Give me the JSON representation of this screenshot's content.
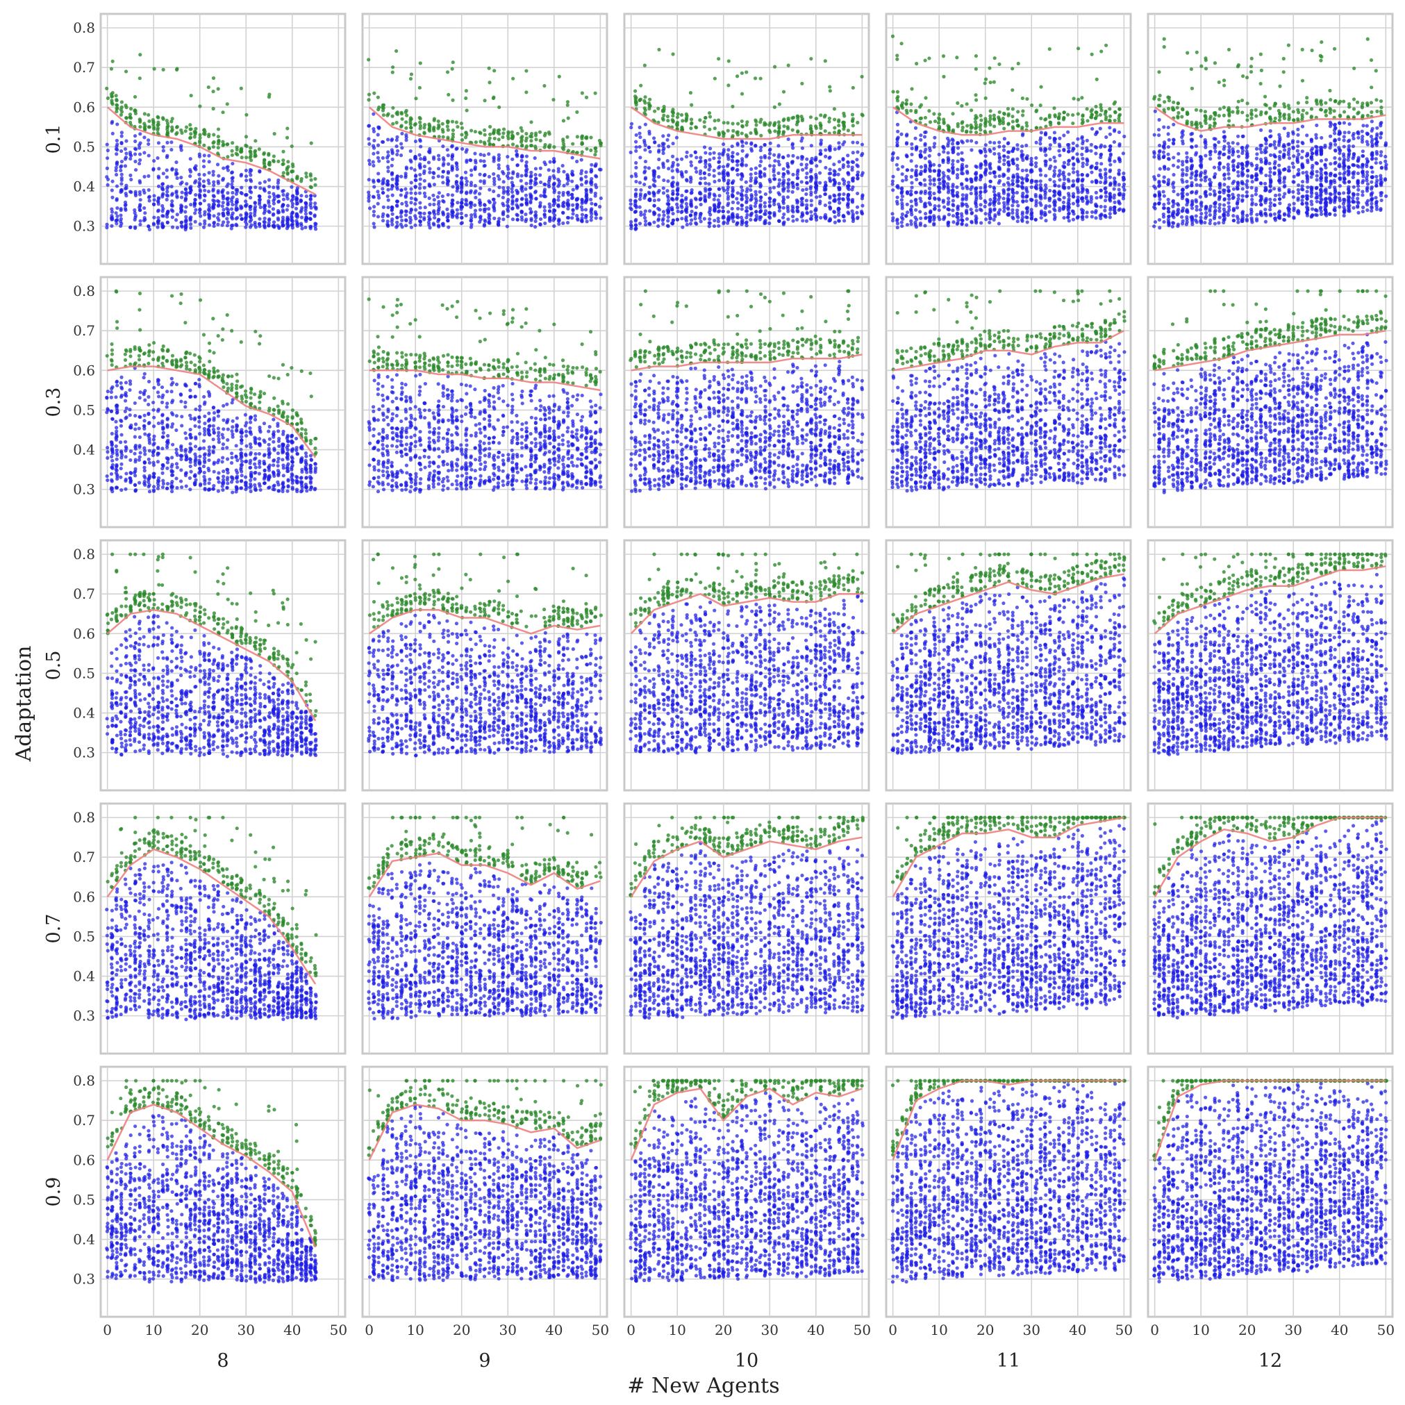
{
  "chart_data": {
    "type": "scatter",
    "layout": "small-multiples grid, 5 rows x 5 columns",
    "xlabel": "# New Agents",
    "ylabel": "Adaptation",
    "column_labels": [
      "8",
      "9",
      "10",
      "11",
      "12"
    ],
    "row_labels": [
      "0.1",
      "0.3",
      "0.5",
      "0.7",
      "0.9"
    ],
    "xlim": [
      -1,
      51
    ],
    "ylim": [
      0.21,
      0.83
    ],
    "xticks": [
      0,
      10,
      20,
      30,
      40,
      50
    ],
    "yticks": [
      0.3,
      0.4,
      0.5,
      0.6,
      0.7,
      0.8
    ],
    "grid": true,
    "legend": "none",
    "colors": {
      "population": "#1f1fe6",
      "frontier": "#2e8b2e",
      "trend": "#f08080"
    },
    "series_description": "Each panel shows a dense cloud of blue points (candidate adaptation values per number of new agents), green points on and above the upper edge, and a thin red line tracing the upper frontier.",
    "frontier": [
      [
        {
          "x": [
            0,
            5,
            10,
            15,
            20,
            25,
            30,
            35,
            40,
            45
          ],
          "y": [
            0.6,
            0.55,
            0.53,
            0.52,
            0.5,
            0.47,
            0.46,
            0.44,
            0.41,
            0.38
          ]
        },
        {
          "x": [
            0,
            5,
            10,
            15,
            20,
            25,
            30,
            35,
            40,
            45,
            50
          ],
          "y": [
            0.6,
            0.55,
            0.53,
            0.52,
            0.51,
            0.5,
            0.5,
            0.49,
            0.49,
            0.48,
            0.47
          ]
        },
        {
          "x": [
            0,
            5,
            10,
            15,
            20,
            25,
            30,
            35,
            40,
            45,
            50
          ],
          "y": [
            0.6,
            0.56,
            0.54,
            0.53,
            0.52,
            0.52,
            0.52,
            0.53,
            0.53,
            0.53,
            0.53
          ]
        },
        {
          "x": [
            0,
            5,
            10,
            15,
            20,
            25,
            30,
            35,
            40,
            45,
            50
          ],
          "y": [
            0.6,
            0.56,
            0.54,
            0.53,
            0.53,
            0.54,
            0.54,
            0.55,
            0.55,
            0.56,
            0.56
          ]
        },
        {
          "x": [
            0,
            5,
            10,
            15,
            20,
            25,
            30,
            35,
            40,
            45,
            50
          ],
          "y": [
            0.6,
            0.56,
            0.54,
            0.55,
            0.55,
            0.56,
            0.56,
            0.57,
            0.57,
            0.57,
            0.58
          ]
        }
      ],
      [
        {
          "x": [
            0,
            5,
            10,
            15,
            20,
            25,
            30,
            35,
            40,
            45
          ],
          "y": [
            0.6,
            0.61,
            0.61,
            0.6,
            0.59,
            0.55,
            0.51,
            0.49,
            0.46,
            0.38
          ]
        },
        {
          "x": [
            0,
            5,
            10,
            15,
            20,
            25,
            30,
            35,
            40,
            45,
            50
          ],
          "y": [
            0.6,
            0.6,
            0.6,
            0.59,
            0.59,
            0.58,
            0.58,
            0.57,
            0.57,
            0.56,
            0.55
          ]
        },
        {
          "x": [
            0,
            5,
            10,
            15,
            20,
            25,
            30,
            35,
            40,
            45,
            50
          ],
          "y": [
            0.6,
            0.61,
            0.61,
            0.62,
            0.62,
            0.62,
            0.62,
            0.63,
            0.63,
            0.63,
            0.64
          ]
        },
        {
          "x": [
            0,
            5,
            10,
            15,
            20,
            25,
            30,
            35,
            40,
            45,
            50
          ],
          "y": [
            0.6,
            0.61,
            0.62,
            0.63,
            0.65,
            0.65,
            0.64,
            0.66,
            0.67,
            0.67,
            0.7
          ]
        },
        {
          "x": [
            0,
            5,
            10,
            15,
            20,
            25,
            30,
            35,
            40,
            45,
            50
          ],
          "y": [
            0.6,
            0.61,
            0.62,
            0.63,
            0.65,
            0.66,
            0.67,
            0.68,
            0.69,
            0.69,
            0.7
          ]
        }
      ],
      [
        {
          "x": [
            0,
            5,
            10,
            15,
            20,
            25,
            30,
            35,
            40,
            45
          ],
          "y": [
            0.6,
            0.65,
            0.66,
            0.65,
            0.62,
            0.59,
            0.56,
            0.53,
            0.48,
            0.38
          ]
        },
        {
          "x": [
            0,
            5,
            10,
            15,
            20,
            25,
            30,
            35,
            40,
            45,
            50
          ],
          "y": [
            0.6,
            0.64,
            0.66,
            0.66,
            0.64,
            0.64,
            0.62,
            0.6,
            0.62,
            0.61,
            0.62
          ]
        },
        {
          "x": [
            0,
            5,
            10,
            15,
            20,
            25,
            30,
            35,
            40,
            45,
            50
          ],
          "y": [
            0.6,
            0.66,
            0.68,
            0.7,
            0.67,
            0.68,
            0.69,
            0.68,
            0.68,
            0.7,
            0.7
          ]
        },
        {
          "x": [
            0,
            5,
            10,
            15,
            20,
            25,
            30,
            35,
            40,
            45,
            50
          ],
          "y": [
            0.6,
            0.65,
            0.67,
            0.69,
            0.71,
            0.73,
            0.71,
            0.7,
            0.72,
            0.74,
            0.75
          ]
        },
        {
          "x": [
            0,
            5,
            10,
            15,
            20,
            25,
            30,
            35,
            40,
            45,
            50
          ],
          "y": [
            0.6,
            0.65,
            0.67,
            0.69,
            0.71,
            0.72,
            0.72,
            0.74,
            0.76,
            0.76,
            0.77
          ]
        }
      ],
      [
        {
          "x": [
            0,
            5,
            10,
            15,
            20,
            25,
            30,
            35,
            40,
            45
          ],
          "y": [
            0.6,
            0.68,
            0.72,
            0.7,
            0.67,
            0.63,
            0.59,
            0.55,
            0.47,
            0.38
          ]
        },
        {
          "x": [
            0,
            5,
            10,
            15,
            20,
            25,
            30,
            35,
            40,
            45,
            50
          ],
          "y": [
            0.6,
            0.69,
            0.7,
            0.71,
            0.68,
            0.68,
            0.66,
            0.63,
            0.66,
            0.62,
            0.64
          ]
        },
        {
          "x": [
            0,
            5,
            10,
            15,
            20,
            25,
            30,
            35,
            40,
            45,
            50
          ],
          "y": [
            0.6,
            0.69,
            0.72,
            0.74,
            0.7,
            0.72,
            0.74,
            0.73,
            0.72,
            0.74,
            0.75
          ]
        },
        {
          "x": [
            0,
            5,
            10,
            15,
            20,
            25,
            30,
            35,
            40,
            45,
            50
          ],
          "y": [
            0.6,
            0.7,
            0.73,
            0.76,
            0.76,
            0.77,
            0.75,
            0.75,
            0.78,
            0.79,
            0.8
          ]
        },
        {
          "x": [
            0,
            5,
            10,
            15,
            20,
            25,
            30,
            35,
            40,
            45,
            50
          ],
          "y": [
            0.6,
            0.7,
            0.74,
            0.77,
            0.76,
            0.74,
            0.75,
            0.78,
            0.8,
            0.8,
            0.8
          ]
        }
      ],
      [
        {
          "x": [
            0,
            5,
            10,
            15,
            20,
            25,
            30,
            35,
            40,
            45
          ],
          "y": [
            0.6,
            0.72,
            0.74,
            0.72,
            0.68,
            0.64,
            0.61,
            0.57,
            0.52,
            0.38
          ]
        },
        {
          "x": [
            0,
            5,
            10,
            15,
            20,
            25,
            30,
            35,
            40,
            45,
            50
          ],
          "y": [
            0.6,
            0.72,
            0.74,
            0.73,
            0.7,
            0.7,
            0.69,
            0.67,
            0.68,
            0.63,
            0.65
          ]
        },
        {
          "x": [
            0,
            5,
            10,
            15,
            20,
            25,
            30,
            35,
            40,
            45,
            50
          ],
          "y": [
            0.6,
            0.74,
            0.77,
            0.78,
            0.7,
            0.76,
            0.78,
            0.74,
            0.77,
            0.76,
            0.78
          ]
        },
        {
          "x": [
            0,
            5,
            10,
            15,
            20,
            25,
            30,
            35,
            40,
            45,
            50
          ],
          "y": [
            0.6,
            0.75,
            0.78,
            0.8,
            0.8,
            0.79,
            0.8,
            0.8,
            0.8,
            0.8,
            0.8
          ]
        },
        {
          "x": [
            0,
            5,
            10,
            15,
            20,
            25,
            30,
            35,
            40,
            45,
            50
          ],
          "y": [
            0.6,
            0.76,
            0.79,
            0.8,
            0.8,
            0.8,
            0.8,
            0.8,
            0.8,
            0.8,
            0.8
          ]
        }
      ]
    ]
  }
}
